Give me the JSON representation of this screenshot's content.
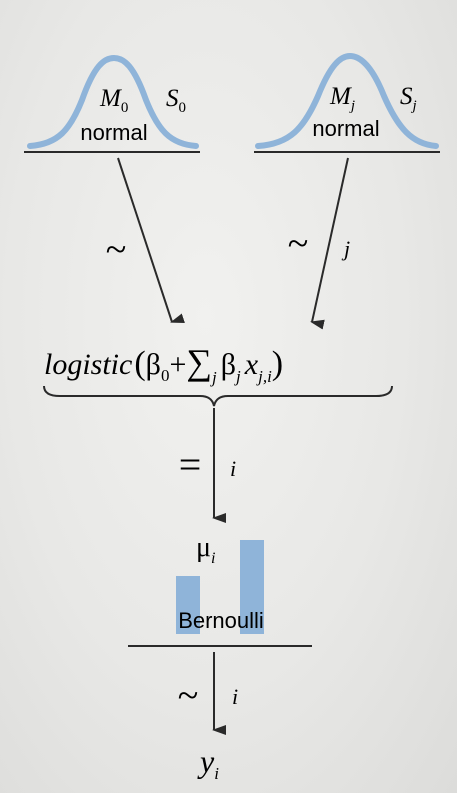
{
  "diagram": {
    "left_prior": {
      "mean_symbol": "M",
      "mean_subscript": "0",
      "sd_symbol": "S",
      "sd_subscript": "0",
      "label": "normal"
    },
    "right_prior": {
      "mean_symbol": "M",
      "mean_subscript": "j",
      "sd_symbol": "S",
      "sd_subscript": "j",
      "label": "normal"
    },
    "arrow_left": {
      "symbol": "~",
      "index": ""
    },
    "arrow_right": {
      "symbol": "~",
      "index": "j"
    },
    "formula": {
      "func": "logistic",
      "open_paren": "(",
      "beta": "β",
      "beta0_sub": "0",
      "plus": "+",
      "sum": "∑",
      "sum_sub": "j",
      "beta_j_sub": "j",
      "x": "x",
      "x_sub": "j,i",
      "close_paren": ")"
    },
    "arrow_mid": {
      "symbol": "=",
      "index": "i"
    },
    "mu": {
      "symbol": "μ",
      "subscript": "i"
    },
    "bernoulli": {
      "label": "Bernoulli"
    },
    "arrow_bottom": {
      "symbol": "~",
      "index": "i"
    },
    "y": {
      "symbol": "y",
      "subscript": "i"
    },
    "colors": {
      "curve": "#8fb4d9",
      "bars": "#8fb4d9",
      "ink": "#2a2a2a"
    }
  }
}
